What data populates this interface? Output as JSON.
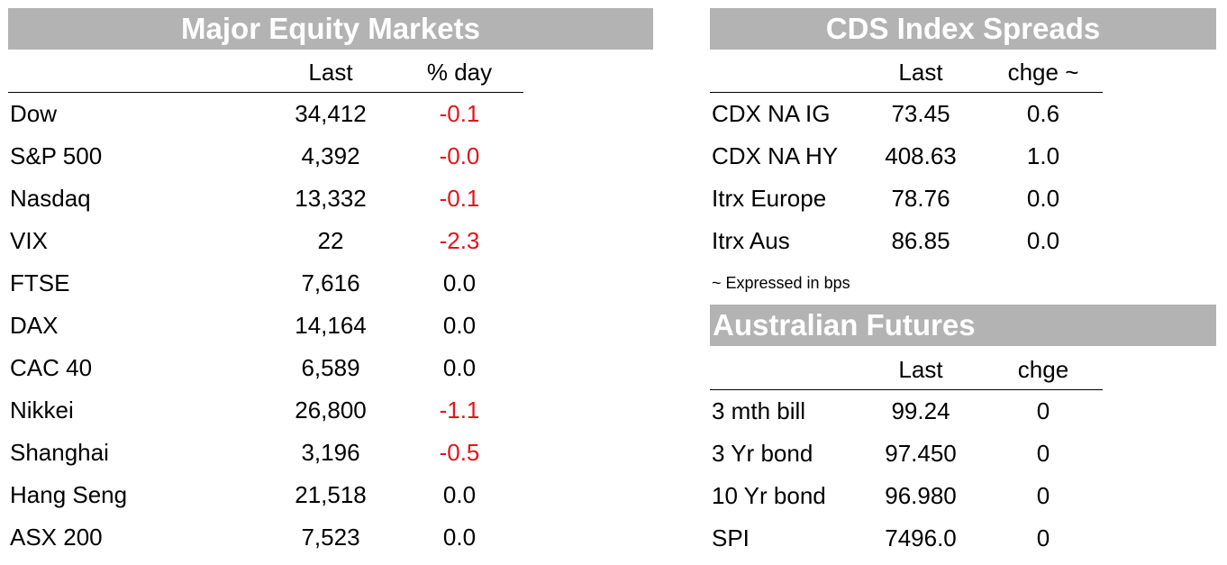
{
  "equity": {
    "title": "Major Equity Markets",
    "col_last": "Last",
    "col_change": "% day",
    "rows": [
      {
        "name": "Dow",
        "last": "34,412",
        "change": "-0.1",
        "negative": true
      },
      {
        "name": "S&P 500",
        "last": "4,392",
        "change": "-0.0",
        "negative": true
      },
      {
        "name": "Nasdaq",
        "last": "13,332",
        "change": "-0.1",
        "negative": true
      },
      {
        "name": "VIX",
        "last": "22",
        "change": "-2.3",
        "negative": true
      },
      {
        "name": "FTSE",
        "last": "7,616",
        "change": "0.0",
        "negative": false
      },
      {
        "name": "DAX",
        "last": "14,164",
        "change": "0.0",
        "negative": false
      },
      {
        "name": "CAC 40",
        "last": "6,589",
        "change": "0.0",
        "negative": false
      },
      {
        "name": "Nikkei",
        "last": "26,800",
        "change": "-1.1",
        "negative": true
      },
      {
        "name": "Shanghai",
        "last": "3,196",
        "change": "-0.5",
        "negative": true
      },
      {
        "name": "Hang Seng",
        "last": "21,518",
        "change": "0.0",
        "negative": false
      },
      {
        "name": "ASX 200",
        "last": "7,523",
        "change": "0.0",
        "negative": false
      }
    ]
  },
  "cds": {
    "title": "CDS Index Spreads",
    "col_last": "Last",
    "col_change": "chge ~",
    "rows": [
      {
        "name": "CDX NA IG",
        "last": "73.45",
        "change": "0.6"
      },
      {
        "name": "CDX NA HY",
        "last": "408.63",
        "change": "1.0"
      },
      {
        "name": "Itrx Europe",
        "last": "78.76",
        "change": "0.0"
      },
      {
        "name": "Itrx Aus",
        "last": "86.85",
        "change": "0.0"
      }
    ],
    "note": "~ Expressed in bps"
  },
  "futures": {
    "title": "Australian Futures",
    "col_last": "Last",
    "col_change": "chge",
    "rows": [
      {
        "name": "3 mth bill",
        "last": "99.24",
        "change": "0"
      },
      {
        "name": "3 Yr bond",
        "last": "97.450",
        "change": "0"
      },
      {
        "name": "10 Yr bond",
        "last": "96.980",
        "change": "0"
      },
      {
        "name": "SPI",
        "last": "7496.0",
        "change": "0"
      }
    ]
  },
  "colors": {
    "header_bg": "#b3b3b3",
    "negative": "#e0161c"
  }
}
